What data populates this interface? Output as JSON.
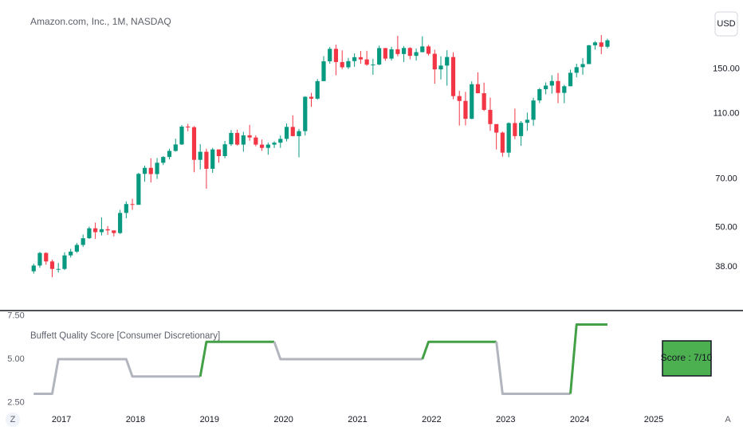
{
  "chart_data": [
    {
      "type": "candlestick",
      "title": "Amazon.com, Inc., 1M, NASDAQ",
      "currency": "USD",
      "up_color": "#089981",
      "down_color": "#f23645",
      "log_scale": true,
      "grid": false,
      "ylim": [
        28.1,
        242
      ],
      "yticks": [
        {
          "value": 38,
          "label": "38.00"
        },
        {
          "value": 50,
          "label": "50.00"
        },
        {
          "value": 70,
          "label": "70.00"
        },
        {
          "value": 110,
          "label": "110.00"
        },
        {
          "value": 150,
          "label": "150.00"
        }
      ],
      "xlim": [
        2016.17,
        2025.7
      ],
      "xticks": [
        2017,
        2018,
        2019,
        2020,
        2021,
        2022,
        2023,
        2024,
        2025
      ],
      "x": [
        2016.625,
        2016.708,
        2016.792,
        2016.875,
        2016.958,
        2017.042,
        2017.125,
        2017.208,
        2017.292,
        2017.375,
        2017.458,
        2017.542,
        2017.625,
        2017.708,
        2017.792,
        2017.875,
        2017.958,
        2018.042,
        2018.125,
        2018.208,
        2018.292,
        2018.375,
        2018.458,
        2018.542,
        2018.625,
        2018.708,
        2018.792,
        2018.875,
        2018.958,
        2019.042,
        2019.125,
        2019.208,
        2019.292,
        2019.375,
        2019.458,
        2019.542,
        2019.625,
        2019.708,
        2019.792,
        2019.875,
        2019.958,
        2020.042,
        2020.125,
        2020.208,
        2020.292,
        2020.375,
        2020.458,
        2020.542,
        2020.625,
        2020.708,
        2020.792,
        2020.875,
        2020.958,
        2021.042,
        2021.125,
        2021.208,
        2021.292,
        2021.375,
        2021.458,
        2021.542,
        2021.625,
        2021.708,
        2021.792,
        2021.875,
        2021.958,
        2022.042,
        2022.125,
        2022.208,
        2022.292,
        2022.375,
        2022.458,
        2022.542,
        2022.625,
        2022.708,
        2022.792,
        2022.875,
        2022.958,
        2023.042,
        2023.125,
        2023.208,
        2023.292,
        2023.375,
        2023.458,
        2023.542,
        2023.625,
        2023.708,
        2023.792,
        2023.875,
        2023.958,
        2024.042,
        2024.125,
        2024.208,
        2024.292,
        2024.375
      ],
      "ohlc": [
        [
          36.9,
          38.9,
          36.3,
          38.4
        ],
        [
          38.4,
          42.2,
          37.8,
          41.9
        ],
        [
          41.9,
          42.1,
          38.6,
          39.5
        ],
        [
          39.5,
          40.0,
          35.4,
          37.5
        ],
        [
          37.5,
          39.1,
          36.6,
          37.5
        ],
        [
          37.5,
          42.1,
          37.2,
          41.2
        ],
        [
          41.2,
          43.1,
          40.6,
          42.3
        ],
        [
          42.3,
          44.9,
          41.9,
          44.3
        ],
        [
          44.3,
          47.6,
          43.7,
          46.4
        ],
        [
          46.4,
          50.3,
          46.2,
          49.7
        ],
        [
          49.7,
          51.7,
          46.2,
          48.4
        ],
        [
          48.4,
          53.6,
          47.3,
          49.4
        ],
        [
          49.4,
          50.5,
          47.5,
          49.0
        ],
        [
          49.0,
          48.9,
          47.0,
          48.1
        ],
        [
          48.1,
          56.5,
          47.8,
          55.3
        ],
        [
          55.3,
          59.9,
          53.3,
          58.8
        ],
        [
          58.8,
          61.0,
          56.5,
          58.5
        ],
        [
          58.5,
          73.0,
          58.6,
          72.5
        ],
        [
          72.5,
          76.8,
          68.6,
          75.6
        ],
        [
          75.6,
          80.8,
          68.3,
          72.4
        ],
        [
          72.4,
          80.9,
          70.0,
          78.3
        ],
        [
          78.3,
          82.0,
          77.1,
          81.5
        ],
        [
          81.5,
          86.3,
          80.1,
          85.0
        ],
        [
          85.0,
          92.5,
          84.6,
          88.9
        ],
        [
          88.9,
          101.7,
          88.6,
          100.6
        ],
        [
          100.6,
          102.5,
          97.4,
          100.2
        ],
        [
          100.2,
          101.0,
          73.3,
          79.9
        ],
        [
          79.9,
          89.1,
          74.8,
          84.5
        ],
        [
          84.5,
          86.3,
          65.4,
          75.1
        ],
        [
          75.1,
          86.8,
          73.0,
          85.9
        ],
        [
          85.9,
          84.3,
          78.3,
          82.0
        ],
        [
          82.0,
          91.1,
          80.8,
          89.0
        ],
        [
          89.0,
          98.2,
          88.0,
          96.3
        ],
        [
          96.3,
          98.5,
          88.2,
          88.8
        ],
        [
          88.8,
          97.0,
          84.5,
          94.7
        ],
        [
          94.7,
          101.8,
          91.2,
          93.3
        ],
        [
          93.3,
          94.7,
          87.8,
          88.8
        ],
        [
          88.8,
          92.0,
          85.0,
          86.8
        ],
        [
          86.8,
          90.0,
          82.8,
          88.8
        ],
        [
          88.8,
          90.8,
          86.7,
          90.0
        ],
        [
          90.0,
          94.7,
          86.8,
          92.4
        ],
        [
          92.4,
          102.8,
          90.8,
          100.4
        ],
        [
          100.4,
          108.8,
          94.0,
          94.2
        ],
        [
          94.2,
          99.0,
          81.3,
          97.5
        ],
        [
          97.5,
          124.2,
          94.6,
          123.7
        ],
        [
          123.7,
          127.1,
          115.5,
          122.1
        ],
        [
          122.1,
          139.9,
          121.3,
          137.9
        ],
        [
          137.9,
          163.9,
          137.7,
          158.2
        ],
        [
          158.2,
          174.8,
          155.6,
          172.5
        ],
        [
          172.5,
          177.6,
          143.6,
          157.4
        ],
        [
          157.4,
          170.7,
          149.8,
          151.8
        ],
        [
          151.8,
          162.0,
          150.0,
          158.4
        ],
        [
          158.4,
          167.2,
          152.3,
          162.8
        ],
        [
          162.8,
          170.0,
          155.5,
          160.3
        ],
        [
          160.3,
          170.1,
          153.3,
          154.6
        ],
        [
          154.6,
          161.0,
          144.1,
          154.7
        ],
        [
          154.7,
          176.4,
          154.0,
          173.4
        ],
        [
          173.4,
          173.5,
          158.8,
          161.2
        ],
        [
          161.2,
          175.0,
          159.1,
          172.0
        ],
        [
          172.0,
          188.7,
          164.0,
          166.4
        ],
        [
          166.4,
          175.8,
          157.4,
          173.5
        ],
        [
          173.5,
          174.5,
          160.4,
          164.3
        ],
        [
          164.3,
          173.0,
          159.0,
          168.6
        ],
        [
          168.6,
          188.1,
          168.3,
          175.4
        ],
        [
          175.4,
          177.3,
          164.7,
          166.7
        ],
        [
          166.7,
          171.4,
          135.4,
          149.6
        ],
        [
          149.6,
          163.8,
          139.5,
          153.6
        ],
        [
          153.6,
          170.8,
          133.6,
          163.0
        ],
        [
          163.0,
          168.4,
          121.6,
          124.3
        ],
        [
          124.3,
          128.9,
          101.3,
          120.2
        ],
        [
          120.2,
          128.0,
          101.4,
          106.2
        ],
        [
          106.2,
          137.7,
          105.9,
          135.0
        ],
        [
          135.0,
          146.6,
          126.7,
          126.8
        ],
        [
          126.8,
          136.5,
          112.1,
          113.0
        ],
        [
          113.0,
          123.0,
          97.7,
          102.4
        ],
        [
          102.4,
          101.5,
          85.9,
          96.5
        ],
        [
          96.5,
          97.2,
          81.7,
          84.0
        ],
        [
          84.0,
          103.6,
          81.4,
          103.1
        ],
        [
          103.1,
          114.0,
          92.2,
          94.2
        ],
        [
          94.2,
          104.6,
          88.1,
          103.3
        ],
        [
          103.3,
          110.9,
          97.7,
          105.5
        ],
        [
          105.5,
          122.9,
          101.2,
          120.6
        ],
        [
          120.6,
          131.5,
          118.4,
          130.4
        ],
        [
          130.4,
          136.7,
          125.9,
          133.7
        ],
        [
          133.7,
          143.6,
          126.4,
          138.0
        ],
        [
          138.0,
          145.9,
          118.4,
          127.1
        ],
        [
          127.1,
          134.5,
          118.4,
          133.1
        ],
        [
          133.1,
          149.3,
          133.0,
          146.1
        ],
        [
          146.1,
          155.6,
          141.6,
          151.9
        ],
        [
          151.9,
          161.7,
          144.1,
          155.2
        ],
        [
          155.2,
          177.2,
          155.6,
          176.8
        ],
        [
          176.8,
          182.0,
          171.5,
          180.4
        ],
        [
          180.4,
          189.8,
          166.3,
          175.0
        ],
        [
          175.0,
          185.0,
          173.0,
          183.0
        ]
      ]
    },
    {
      "type": "line",
      "title": "Buffett Quality Score [Consumer Discretionary]",
      "annotation": "Score :  7/10",
      "annotation_color": "#4caf50",
      "grid": false,
      "ylim": [
        2.06,
        7.71
      ],
      "yticks": [
        {
          "value": 2.5,
          "label": "2.50"
        },
        {
          "value": 5,
          "label": "5.00"
        },
        {
          "value": 7.5,
          "label": "7.50"
        }
      ],
      "values": [
        3,
        3,
        3,
        3,
        5,
        5,
        5,
        5,
        5,
        5,
        5,
        5,
        5,
        5,
        5,
        5,
        4,
        4,
        4,
        4,
        4,
        4,
        4,
        4,
        4,
        4,
        4,
        4,
        6,
        6,
        6,
        6,
        6,
        6,
        6,
        6,
        6,
        6,
        6,
        6,
        5,
        5,
        5,
        5,
        5,
        5,
        5,
        5,
        5,
        5,
        5,
        5,
        5,
        5,
        5,
        5,
        5,
        5,
        5,
        5,
        5,
        5,
        5,
        5,
        6,
        6,
        6,
        6,
        6,
        6,
        6,
        6,
        6,
        6,
        6,
        6,
        3,
        3,
        3,
        3,
        3,
        3,
        3,
        3,
        3,
        3,
        3,
        3,
        7,
        7,
        7,
        7,
        7,
        7
      ],
      "colors": [
        "#b2b5be",
        "#b2b5be",
        "#b2b5be",
        "#b2b5be",
        "#b2b5be",
        "#b2b5be",
        "#b2b5be",
        "#b2b5be",
        "#b2b5be",
        "#b2b5be",
        "#b2b5be",
        "#b2b5be",
        "#b2b5be",
        "#b2b5be",
        "#b2b5be",
        "#b2b5be",
        "#b2b5be",
        "#b2b5be",
        "#b2b5be",
        "#b2b5be",
        "#b2b5be",
        "#b2b5be",
        "#b2b5be",
        "#b2b5be",
        "#b2b5be",
        "#b2b5be",
        "#b2b5be",
        "#b2b5be",
        "#43a047",
        "#43a047",
        "#43a047",
        "#43a047",
        "#43a047",
        "#43a047",
        "#43a047",
        "#43a047",
        "#43a047",
        "#43a047",
        "#43a047",
        "#43a047",
        "#b2b5be",
        "#b2b5be",
        "#b2b5be",
        "#b2b5be",
        "#b2b5be",
        "#b2b5be",
        "#b2b5be",
        "#b2b5be",
        "#b2b5be",
        "#b2b5be",
        "#b2b5be",
        "#b2b5be",
        "#b2b5be",
        "#b2b5be",
        "#b2b5be",
        "#b2b5be",
        "#b2b5be",
        "#b2b5be",
        "#b2b5be",
        "#b2b5be",
        "#b2b5be",
        "#b2b5be",
        "#b2b5be",
        "#b2b5be",
        "#43a047",
        "#43a047",
        "#43a047",
        "#43a047",
        "#43a047",
        "#43a047",
        "#43a047",
        "#43a047",
        "#43a047",
        "#43a047",
        "#43a047",
        "#43a047",
        "#b2b5be",
        "#b2b5be",
        "#b2b5be",
        "#b2b5be",
        "#b2b5be",
        "#b2b5be",
        "#b2b5be",
        "#b2b5be",
        "#b2b5be",
        "#b2b5be",
        "#b2b5be",
        "#b2b5be",
        "#43a047",
        "#43a047",
        "#43a047",
        "#43a047",
        "#43a047",
        "#43a047"
      ]
    }
  ],
  "toolbar": {
    "left": "Z",
    "right": "A"
  }
}
